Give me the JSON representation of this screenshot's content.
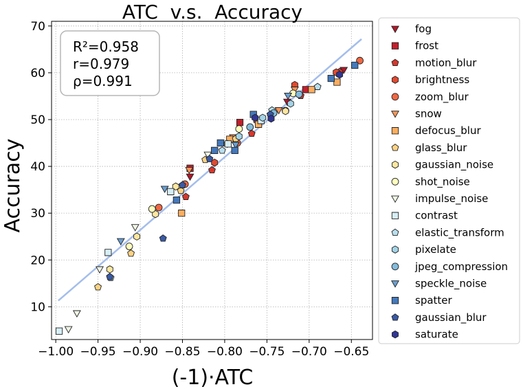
{
  "chart_data": {
    "type": "scatter",
    "title": "ATC  v.s.  Accuracy",
    "xlabel": "(-1)·ATC",
    "ylabel": "Accuracy",
    "xlim": [
      -1.005,
      -0.625
    ],
    "ylim": [
      3,
      71
    ],
    "xticks": [
      -1.0,
      -0.95,
      -0.9,
      -0.85,
      -0.8,
      -0.75,
      -0.7,
      -0.65
    ],
    "xtick_labels": [
      "−1.00",
      "−0.95",
      "−0.90",
      "−0.85",
      "−0.80",
      "−0.75",
      "−0.70",
      "−0.65"
    ],
    "yticks": [
      10,
      20,
      30,
      40,
      50,
      60,
      70
    ],
    "ytick_labels": [
      "10",
      "20",
      "30",
      "40",
      "50",
      "60",
      "70"
    ],
    "grid": true,
    "legend_position": "outside-right",
    "stats": [
      "R²=0.958",
      "r=0.979",
      "ρ=0.991"
    ],
    "fit_line": {
      "x": [
        -0.997,
        -0.638
      ],
      "y": [
        11.3,
        67.2
      ],
      "color": "#a4bdeb"
    },
    "series": [
      {
        "name": "fog",
        "marker": "triangle-down",
        "color": "#b2182b",
        "x": [
          -0.841,
          -0.726,
          -0.659
        ],
        "y": [
          37.8,
          53.8,
          60.6
        ]
      },
      {
        "name": "frost",
        "marker": "square",
        "color": "#c21f2c",
        "x": [
          -0.841,
          -0.782,
          -0.704
        ],
        "y": [
          39.6,
          49.4,
          56.4
        ]
      },
      {
        "name": "motion_blur",
        "marker": "pentagon",
        "color": "#d6382e",
        "x": [
          -0.846,
          -0.815,
          -0.768,
          -0.71,
          -0.664
        ],
        "y": [
          33.5,
          39.2,
          47.0,
          55.1,
          60.2
        ]
      },
      {
        "name": "brightness",
        "marker": "hexagon",
        "color": "#e04a30",
        "x": [
          -0.812,
          -0.762,
          -0.717,
          -0.668
        ],
        "y": [
          40.8,
          49.8,
          57.4,
          60.1
        ]
      },
      {
        "name": "zoom_blur",
        "marker": "circle",
        "color": "#f06843",
        "x": [
          -0.878,
          -0.847,
          -0.785,
          -0.728,
          -0.64
        ],
        "y": [
          31.2,
          36.2,
          45.0,
          51.9,
          62.6
        ]
      },
      {
        "name": "snow",
        "marker": "triangle-down",
        "color": "#f7965a",
        "x": [
          -0.842,
          -0.79,
          -0.736,
          -0.717
        ],
        "y": [
          39.2,
          46.2,
          52.0,
          56.4
        ]
      },
      {
        "name": "defocus_blur",
        "marker": "square",
        "color": "#fbae60",
        "x": [
          -0.851,
          -0.794,
          -0.76,
          -0.697,
          -0.667
        ],
        "y": [
          30.0,
          45.8,
          49.0,
          56.4,
          58.0
        ]
      },
      {
        "name": "glass_blur",
        "marker": "pentagon",
        "color": "#fcd383",
        "x": [
          -0.95,
          -0.911,
          -0.852,
          -0.823,
          -0.787
        ],
        "y": [
          14.2,
          21.4,
          34.8,
          41.4,
          45.9
        ]
      },
      {
        "name": "gaussian_noise",
        "marker": "hexagon",
        "color": "#fee7a0",
        "x": [
          -0.936,
          -0.904,
          -0.882,
          -0.858,
          -0.797,
          -0.728
        ],
        "y": [
          18.0,
          25.0,
          29.8,
          35.7,
          44.8,
          51.8
        ]
      },
      {
        "name": "shot_noise",
        "marker": "circle",
        "color": "#ffffbf",
        "x": [
          -0.913,
          -0.886,
          -0.783,
          -0.719
        ],
        "y": [
          22.9,
          30.9,
          48.0,
          55.6
        ]
      },
      {
        "name": "impulse_noise",
        "marker": "triangle-down",
        "color": "#f0f6e5",
        "x": [
          -0.985,
          -0.975,
          -0.948,
          -0.906,
          -0.82
        ],
        "y": [
          5.2,
          8.6,
          18.0,
          27.0,
          42.5
        ]
      },
      {
        "name": "contrast",
        "marker": "square",
        "color": "#d6eef5",
        "x": [
          -0.996,
          -0.938,
          -0.864,
          -0.796,
          -0.757
        ],
        "y": [
          4.8,
          21.6,
          34.6,
          44.8,
          49.8
        ]
      },
      {
        "name": "elastic_transform",
        "marker": "pentagon",
        "color": "#b8dfee",
        "x": [
          -0.935,
          -0.803,
          -0.744,
          -0.69
        ],
        "y": [
          16.2,
          43.4,
          52.0,
          57.0
        ]
      },
      {
        "name": "pixelate",
        "marker": "hexagon",
        "color": "#a3d3e6",
        "x": [
          -0.783,
          -0.755,
          -0.722
        ],
        "y": [
          46.4,
          50.4,
          53.4
        ]
      },
      {
        "name": "jpeg_compression",
        "marker": "circle",
        "color": "#84bcdb",
        "x": [
          -0.77,
          -0.742,
          -0.712
        ],
        "y": [
          48.4,
          51.4,
          55.4
        ]
      },
      {
        "name": "speckle_noise",
        "marker": "triangle-down",
        "color": "#6a9fd0",
        "x": [
          -0.923,
          -0.871,
          -0.787,
          -0.725
        ],
        "y": [
          24.0,
          35.2,
          44.6,
          55.1
        ]
      },
      {
        "name": "spatter",
        "marker": "square",
        "color": "#4479bb",
        "x": [
          -0.857,
          -0.812,
          -0.805,
          -0.788,
          -0.766,
          -0.674,
          -0.646
        ],
        "y": [
          32.8,
          43.4,
          45.0,
          43.4,
          51.1,
          58.8,
          61.6
        ]
      },
      {
        "name": "gaussian_blur",
        "marker": "pentagon",
        "color": "#3a5aa6",
        "x": [
          -0.936,
          -0.873,
          -0.85,
          -0.818,
          -0.746
        ],
        "y": [
          16.4,
          24.6,
          36.0,
          41.6,
          51.1
        ]
      },
      {
        "name": "saturate",
        "marker": "hexagon",
        "color": "#313695",
        "x": [
          -0.764,
          -0.745,
          -0.664
        ],
        "y": [
          50.4,
          50.2,
          59.6
        ]
      }
    ]
  }
}
